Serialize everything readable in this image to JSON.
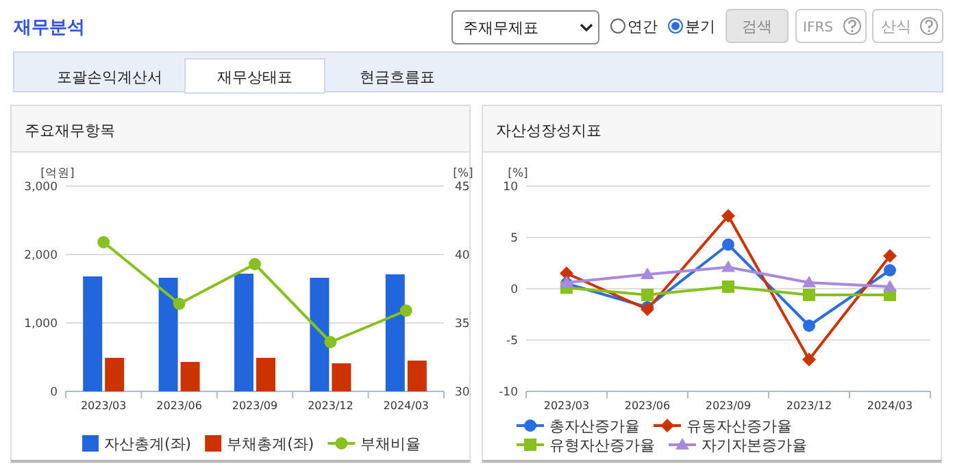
{
  "chart_data": [
    {
      "type": "other",
      "title": "재무분석",
      "annotations": [
        "주재무제표",
        "연간",
        "분기",
        "검색",
        "IFRS",
        "산식",
        "포괄손익계산서",
        "재무상태표",
        "현금흐름표"
      ]
    },
    {
      "type": "bar",
      "title": "주요재무항목",
      "ylabel": "[억원]",
      "y2label": "[%]",
      "categories": [
        "2023/03",
        "2023/06",
        "2023/09",
        "2023/12",
        "2024/03"
      ],
      "series": [
        {
          "name": "자산총계(좌)",
          "color": "#2266dd",
          "values": [
            1680,
            1660,
            1720,
            1660,
            1710
          ]
        },
        {
          "name": "부채총계(좌)",
          "color": "#cc3300",
          "values": [
            490,
            430,
            490,
            410,
            450
          ]
        },
        {
          "name": "부채비율",
          "type": "line",
          "axis": "y2",
          "color": "#88c020",
          "marker": "circle",
          "values": [
            40.9,
            36.4,
            39.3,
            33.6,
            35.9
          ]
        }
      ],
      "ylim": [
        0,
        3000
      ],
      "yticks": [
        0,
        {
          "value": 1000,
          "label": "1,000"
        },
        {
          "value": 2000,
          "label": "2,000"
        },
        {
          "value": 3000,
          "label": "3,000"
        }
      ],
      "y2lim": [
        30,
        45
      ],
      "y2ticks": [
        30,
        35,
        40,
        45
      ],
      "grid": "y",
      "legend": "bottom",
      "line_style": "solid"
    },
    {
      "type": "line",
      "title": "자산성장성지표",
      "ylabel": "[%]",
      "categories": [
        "2023/03",
        "2023/06",
        "2023/09",
        "2023/12",
        "2024/03"
      ],
      "series": [
        {
          "name": "총자산증가율",
          "color": "#2a6ee0",
          "marker": "circle",
          "values": [
            0.5,
            -1.8,
            4.3,
            -3.6,
            1.8
          ]
        },
        {
          "name": "유동자산증가율",
          "color": "#cc3300",
          "marker": "diamond",
          "values": [
            1.5,
            -2.0,
            7.1,
            -6.9,
            3.2
          ]
        },
        {
          "name": "유형자산증가율",
          "color": "#88c020",
          "marker": "square",
          "values": [
            0.1,
            -0.6,
            0.2,
            -0.6,
            -0.6
          ]
        },
        {
          "name": "자기자본증가율",
          "color": "#aa88dd",
          "marker": "triangle",
          "values": [
            0.6,
            1.4,
            2.1,
            0.6,
            0.2
          ]
        }
      ],
      "ylim": [
        -10,
        10
      ],
      "yticks": [
        -10,
        -5,
        0,
        5,
        10
      ],
      "grid": "y",
      "legend": "bottom",
      "line_style": "solid"
    }
  ]
}
